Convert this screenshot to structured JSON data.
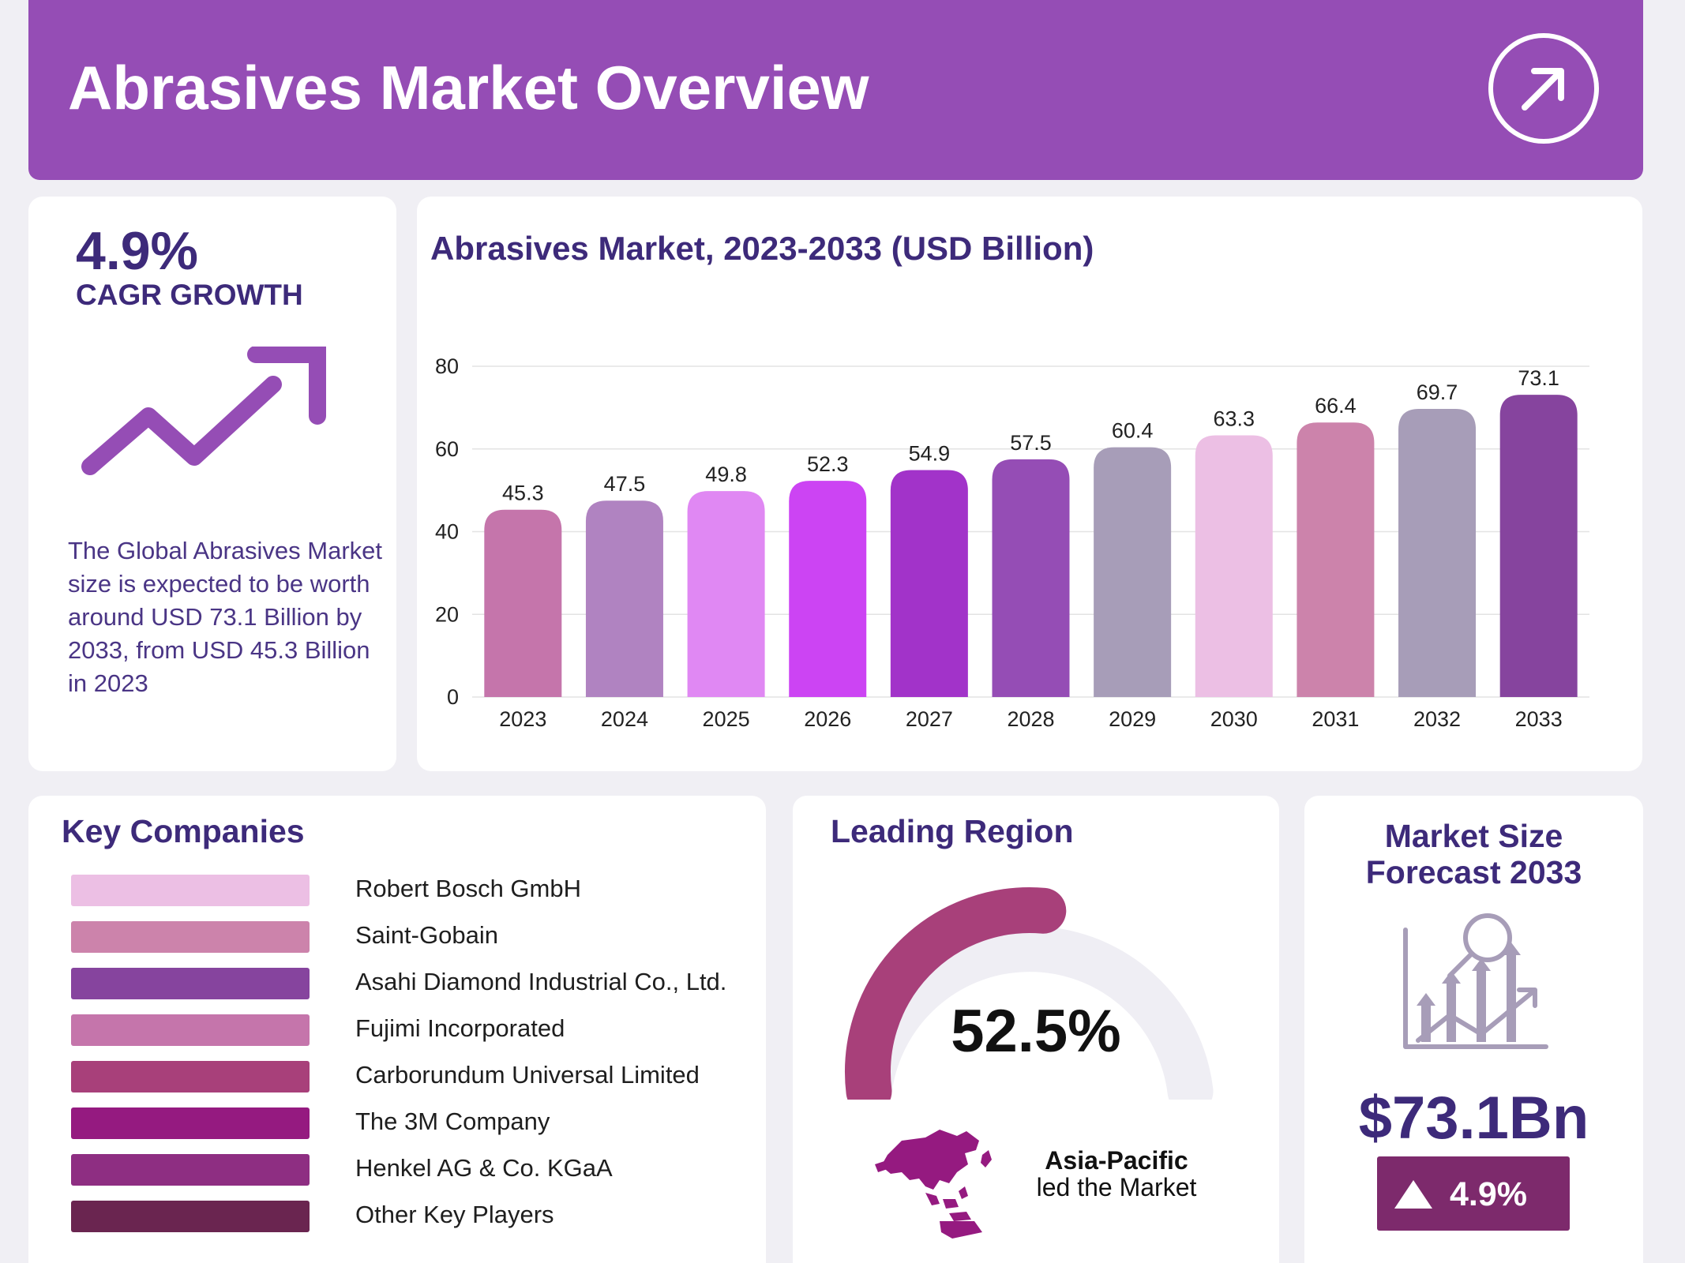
{
  "header": {
    "title": "Abrasives Market Overview",
    "accent": "#954db5"
  },
  "cagr": {
    "value": "4.9%",
    "label": "CAGR GROWTH",
    "description": "The Global Abrasives Market size is expected to be worth around USD 73.1 Billion by 2033, from USD 45.3 Billion in 2023"
  },
  "chart_data": {
    "type": "bar",
    "title": "Abrasives Market, 2023-2033 (USD Billion)",
    "xlabel": "",
    "ylabel": "",
    "categories": [
      "2023",
      "2024",
      "2025",
      "2026",
      "2027",
      "2028",
      "2029",
      "2030",
      "2031",
      "2032",
      "2033"
    ],
    "values": [
      45.3,
      47.5,
      49.8,
      52.3,
      54.9,
      57.5,
      60.4,
      63.3,
      66.4,
      69.7,
      73.1
    ],
    "value_labels": [
      "45.3",
      "47.5",
      "49.8",
      "52.3",
      "54.9",
      "57.5",
      "60.4",
      "63.3",
      "66.4",
      "69.7",
      "73.1"
    ],
    "colors": [
      "#c575ab",
      "#b083c1",
      "#e088f3",
      "#cc44f3",
      "#a233c9",
      "#954db5",
      "#a79db8",
      "#ecbfe4",
      "#cc83ab",
      "#a79db8",
      "#86449e"
    ],
    "ylim": [
      0,
      80
    ],
    "yticks": [
      0,
      20,
      40,
      60,
      80
    ],
    "ytick_labels": [
      "0",
      "20",
      "40",
      "60",
      "80"
    ],
    "grid": true,
    "legend": "none"
  },
  "companies": {
    "title": "Key Companies",
    "items": [
      {
        "name": "Robert Bosch GmbH",
        "color": "#ecbfe4"
      },
      {
        "name": "Saint-Gobain",
        "color": "#cc83ab"
      },
      {
        "name": "Asahi Diamond Industrial Co., Ltd.",
        "color": "#86449e"
      },
      {
        "name": "Fujimi Incorporated",
        "color": "#c575ab"
      },
      {
        "name": "Carborundum Universal Limited",
        "color": "#a8407a"
      },
      {
        "name": "The 3M Company",
        "color": "#951a80"
      },
      {
        "name": "Henkel AG & Co. KGaA",
        "color": "#8e2e82"
      },
      {
        "name": "Other Key Players",
        "color": "#6a2550"
      }
    ]
  },
  "region": {
    "title": "Leading Region",
    "share_label": "52.5%",
    "share": 52.5,
    "name": "Asia-Pacific",
    "subtitle": "led the Market",
    "gauge_color": "#a8407a",
    "track_color": "#efeef4"
  },
  "forecast": {
    "title_line1": "Market Size",
    "title_line2": "Forecast 2033",
    "value": "$73.1Bn",
    "growth": "4.9%",
    "badge_color": "#7d2a6c"
  }
}
